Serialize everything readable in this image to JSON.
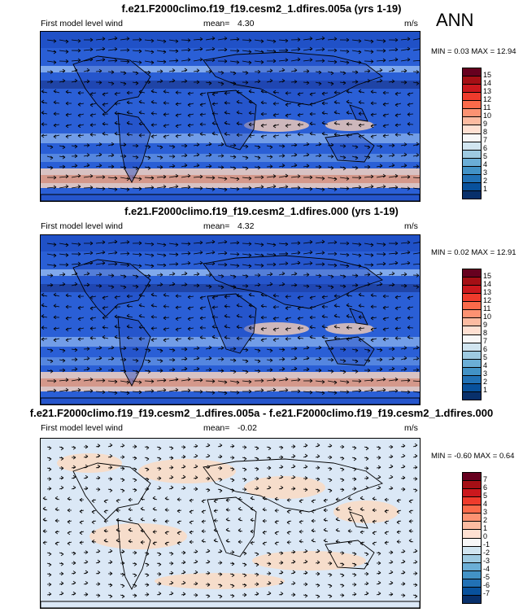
{
  "season": "ANN",
  "panels": [
    {
      "title": "f.e21.F2000climo.f19_f19.cesm2_1.dfires.005a (yrs 1-19)",
      "variable": "First model level wind",
      "mean_label": "mean=",
      "mean_value": "4.30",
      "units": "m/s",
      "min_max": "MIN =  0.03 MAX =  12.94",
      "colorbar_labels": [
        "15",
        "14",
        "13",
        "12",
        "11",
        "10",
        "9",
        "8",
        "7",
        "6",
        "5",
        "4",
        "3",
        "2",
        "1"
      ],
      "colorbar_colors": [
        "#67001f",
        "#a50f15",
        "#cb181d",
        "#ef3b2c",
        "#fb6a4a",
        "#fc9272",
        "#fcbba1",
        "#fee0d2",
        "#f7f7f7",
        "#d1e5f0",
        "#9ecae1",
        "#6baed6",
        "#4292c6",
        "#2171b5",
        "#08519c",
        "#08306b"
      ],
      "background_color": "#2a5fd6"
    },
    {
      "title": "f.e21.F2000climo.f19_f19.cesm2_1.dfires.000 (yrs 1-19)",
      "variable": "First model level wind",
      "mean_label": "mean=",
      "mean_value": "4.32",
      "units": "m/s",
      "min_max": "MIN =  0.02 MAX =  12.91",
      "colorbar_labels": [
        "15",
        "14",
        "13",
        "12",
        "11",
        "10",
        "9",
        "8",
        "7",
        "6",
        "5",
        "4",
        "3",
        "2",
        "1"
      ],
      "colorbar_colors": [
        "#67001f",
        "#a50f15",
        "#cb181d",
        "#ef3b2c",
        "#fb6a4a",
        "#fc9272",
        "#fcbba1",
        "#fee0d2",
        "#f7f7f7",
        "#d1e5f0",
        "#9ecae1",
        "#6baed6",
        "#4292c6",
        "#2171b5",
        "#08519c",
        "#08306b"
      ],
      "background_color": "#2a5fd6"
    },
    {
      "title": "f.e21.F2000climo.f19_f19.cesm2_1.dfires.005a - f.e21.F2000climo.f19_f19.cesm2_1.dfires.000",
      "variable": "First model level wind",
      "mean_label": "mean=",
      "mean_value": "-0.02",
      "units": "m/s",
      "min_max": "MIN = -0.60 MAX =  0.64",
      "colorbar_labels": [
        "7",
        "6",
        "5",
        "4",
        "3",
        "2",
        "1",
        "0",
        "-1",
        "-2",
        "-3",
        "-4",
        "-5",
        "-6",
        "-7"
      ],
      "colorbar_colors": [
        "#67001f",
        "#a50f15",
        "#cb181d",
        "#ef3b2c",
        "#fb6a4a",
        "#fc9272",
        "#fcbba1",
        "#fee0d2",
        "#f7f7f7",
        "#d1e5f0",
        "#9ecae1",
        "#6baed6",
        "#4292c6",
        "#2171b5",
        "#08519c",
        "#08306b"
      ],
      "background_color": "#dbe8f6"
    }
  ]
}
